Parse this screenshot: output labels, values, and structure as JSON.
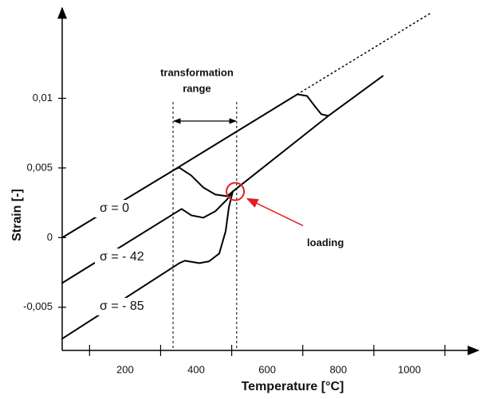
{
  "chart_data": {
    "type": "line",
    "xlabel": "Temperature [°C]",
    "ylabel": "Strain [-]",
    "xlim": [
      23,
      1183
    ],
    "ylim": [
      -0.0081,
      0.0162
    ],
    "xticks": [
      200,
      400,
      600,
      800,
      1000
    ],
    "x_minor_ticks": [
      100,
      300,
      500,
      700,
      900,
      1100
    ],
    "yticks": [
      {
        "value": -0.005,
        "label": "-0,005"
      },
      0,
      {
        "value": 0.005,
        "label": "0,005"
      },
      {
        "value": 0.01,
        "label": "0,01"
      }
    ],
    "grid": false,
    "series": [
      {
        "name": "σ = 0",
        "color": "#000000",
        "x": [
          23,
          341,
          353,
          359,
          386,
          420,
          454,
          487,
          503
        ],
        "values": [
          0,
          0.00491,
          0.00503,
          0.00491,
          0.00446,
          0.0036,
          0.00309,
          0.00297,
          0.00331
        ]
      },
      {
        "name": "σ = - 42",
        "color": "#000000",
        "x": [
          23,
          337,
          359,
          386,
          420,
          454,
          487,
          503
        ],
        "values": [
          -0.00326,
          0.00171,
          0.00206,
          0.0016,
          0.00143,
          0.00189,
          0.00274,
          0.00331
        ]
      },
      {
        "name": "σ = - 85",
        "color": "#000000",
        "x": [
          23,
          353,
          368,
          409,
          436,
          465,
          483,
          492,
          503
        ],
        "values": [
          -0.00726,
          -0.00183,
          -0.00166,
          -0.00183,
          -0.00171,
          -0.00114,
          0.00046,
          0.00217,
          0.00331
        ]
      },
      {
        "color": "#000000",
        "x": [
          341,
          685,
          712,
          734,
          752,
          772
        ],
        "values": [
          0.00491,
          0.01029,
          0.01017,
          0.00943,
          0.00886,
          0.00874
        ]
      },
      {
        "color": "#000000",
        "x": [
          503,
          772,
          925
        ],
        "values": [
          0.00331,
          0.00874,
          0.0116
        ]
      },
      {
        "color": "#000000",
        "dash": "dotted",
        "x": [
          685,
          1060
        ],
        "values": [
          0.01029,
          0.01612
        ]
      }
    ],
    "transformation_range": {
      "lines": [
        "transformation",
        "range"
      ],
      "x": [
        335,
        514
      ]
    },
    "loading": {
      "text": "loading",
      "x": 510,
      "y": 0.00331,
      "color": "#e02020"
    }
  }
}
